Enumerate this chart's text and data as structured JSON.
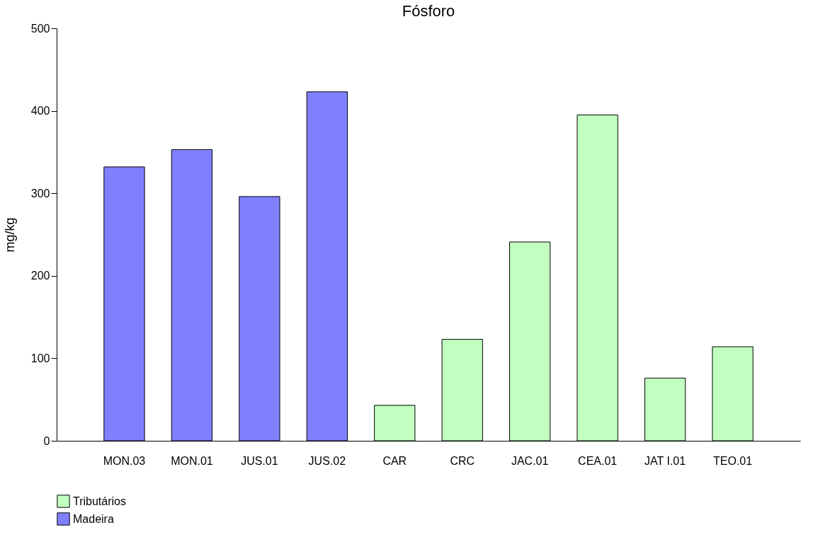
{
  "chart_data": {
    "type": "bar",
    "title": "Fósforo",
    "ylabel": "mg/kg",
    "categories": [
      "MON.03",
      "MON.01",
      "JUS.01",
      "JUS.02",
      "CAR",
      "CRC",
      "JAC.01",
      "CEA.01",
      "JAT I.01",
      "TEO.01"
    ],
    "series": [
      {
        "name": "Tributários",
        "color": "#c0ffc0",
        "values": [
          null,
          null,
          null,
          null,
          43,
          123,
          241,
          395,
          76,
          114
        ]
      },
      {
        "name": "Madeira",
        "color": "#8080ff",
        "values": [
          332,
          353,
          296,
          423,
          null,
          null,
          null,
          null,
          null,
          null
        ]
      }
    ],
    "ylim": [
      0,
      500
    ],
    "yticks": [
      0,
      100,
      200,
      300,
      400,
      500
    ],
    "grid": false,
    "legend": "bottom"
  }
}
